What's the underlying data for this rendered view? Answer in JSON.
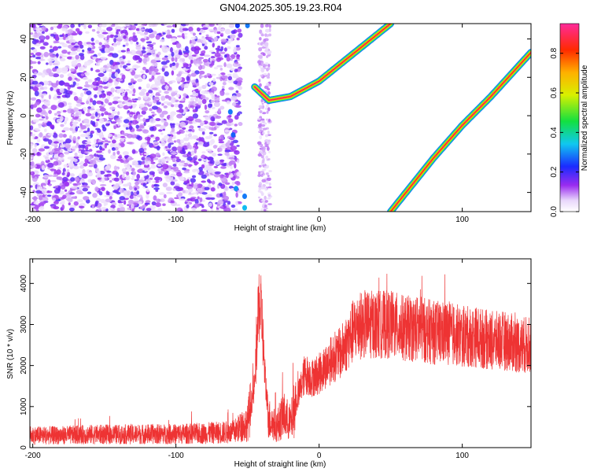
{
  "title": "GN04.2025.305.19.23.R04",
  "colors": {
    "snr_line": "#ee3333",
    "frame": "#000000",
    "background": "#ffffff"
  },
  "chart_data": [
    {
      "type": "heatmap",
      "xlabel": "Height of straight line (km)",
      "ylabel": "Frequency (Hz)",
      "xlim": [
        -202,
        148
      ],
      "ylim": [
        -50,
        48
      ],
      "xticks": [
        -200,
        -100,
        0,
        100
      ],
      "yticks": [
        -40,
        -20,
        0,
        20,
        40
      ],
      "colorbar": {
        "label": "Normalized spectral amplitude",
        "range": [
          0,
          0.95
        ],
        "ticks": [
          0.0,
          0.2,
          0.4,
          0.6,
          0.8
        ],
        "tick_labels": [
          "0.0",
          "0.2",
          "0.4",
          "0.6",
          "0.8"
        ],
        "colormap": "rainbow (white-violet-blue-cyan-green-yellow-orange-red-magenta)"
      },
      "features": [
        {
          "name": "noise field",
          "x_range": [
            -202,
            -55
          ],
          "y_range": [
            -50,
            48
          ],
          "amplitude": "0.1-0.2"
        },
        {
          "name": "noise strip",
          "x_range": [
            -40,
            -35
          ],
          "y_range": [
            -50,
            48
          ],
          "amplitude": "0.05-0.1"
        },
        {
          "name": "ridge A",
          "points": [
            [
              -45,
              15
            ],
            [
              -35,
              8
            ],
            [
              -20,
              10
            ],
            [
              0,
              18
            ],
            [
              20,
              30
            ],
            [
              50,
              48
            ]
          ],
          "amplitude": 0.9
        },
        {
          "name": "ridge B",
          "points": [
            [
              50,
              -50
            ],
            [
              80,
              -22
            ],
            [
              100,
              -5
            ],
            [
              120,
              10
            ],
            [
              148,
              33
            ]
          ],
          "amplitude": 0.9
        }
      ]
    },
    {
      "type": "line",
      "xlabel": "Height of straight line (km)",
      "ylabel": "SNR (10 * v/v)",
      "xlim": [
        -202,
        148
      ],
      "ylim": [
        0,
        4600
      ],
      "xticks": [
        -200,
        -100,
        0,
        100
      ],
      "yticks": [
        0,
        1000,
        2000,
        3000,
        4000
      ],
      "series": [
        {
          "x": [
            -202,
            -180,
            -160,
            -140,
            -120,
            -100,
            -80,
            -60,
            -50,
            -45,
            -42,
            -40,
            -38,
            -35,
            -30,
            -25,
            -20,
            -15,
            -10,
            -5,
            0,
            5,
            10,
            15,
            20,
            25,
            30,
            35,
            40,
            50,
            60,
            70,
            80,
            90,
            100,
            110,
            120,
            130,
            140,
            148
          ],
          "y": [
            300,
            300,
            320,
            320,
            330,
            330,
            350,
            380,
            600,
            1500,
            3500,
            3200,
            1800,
            700,
            500,
            800,
            600,
            1200,
            1800,
            1700,
            1800,
            2000,
            2200,
            2300,
            2600,
            2900,
            3000,
            3000,
            3000,
            3000,
            2900,
            2900,
            2800,
            2800,
            2700,
            2700,
            2600,
            2600,
            2500,
            2500
          ]
        }
      ]
    }
  ]
}
